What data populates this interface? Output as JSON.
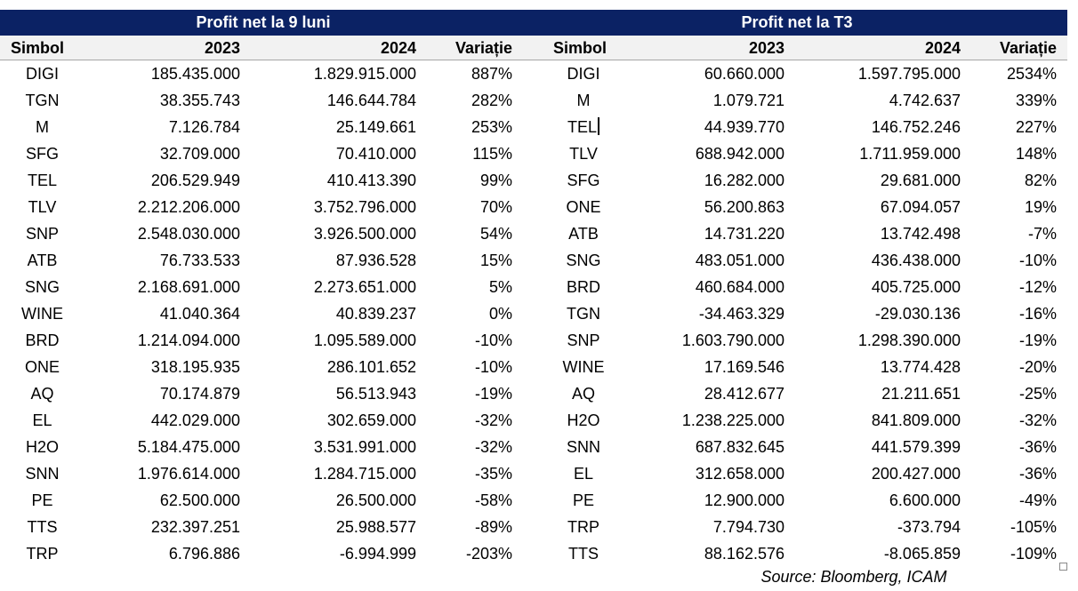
{
  "page": {
    "background": "#ffffff",
    "accent_navy": "#0b2264",
    "header_row_bg": "#f2f2f2",
    "header_underline": "#a6a6a6",
    "source_note": "Source: Bloomberg, ICAM"
  },
  "chart_data": [
    {
      "type": "table",
      "title": "Profit net la 9 luni",
      "columns": [
        "Simbol",
        "2023",
        "2024",
        "Variație"
      ],
      "rows": [
        [
          "DIGI",
          "185.435.000",
          "1.829.915.000",
          "887%"
        ],
        [
          "TGN",
          "38.355.743",
          "146.644.784",
          "282%"
        ],
        [
          "M",
          "7.126.784",
          "25.149.661",
          "253%"
        ],
        [
          "SFG",
          "32.709.000",
          "70.410.000",
          "115%"
        ],
        [
          "TEL",
          "206.529.949",
          "410.413.390",
          "99%"
        ],
        [
          "TLV",
          "2.212.206.000",
          "3.752.796.000",
          "70%"
        ],
        [
          "SNP",
          "2.548.030.000",
          "3.926.500.000",
          "54%"
        ],
        [
          "ATB",
          "76.733.533",
          "87.936.528",
          "15%"
        ],
        [
          "SNG",
          "2.168.691.000",
          "2.273.651.000",
          "5%"
        ],
        [
          "WINE",
          "41.040.364",
          "40.839.237",
          "0%"
        ],
        [
          "BRD",
          "1.214.094.000",
          "1.095.589.000",
          "-10%"
        ],
        [
          "ONE",
          "318.195.935",
          "286.101.652",
          "-10%"
        ],
        [
          "AQ",
          "70.174.879",
          "56.513.943",
          "-19%"
        ],
        [
          "EL",
          "442.029.000",
          "302.659.000",
          "-32%"
        ],
        [
          "H2O",
          "5.184.475.000",
          "3.531.991.000",
          "-32%"
        ],
        [
          "SNN",
          "1.976.614.000",
          "1.284.715.000",
          "-35%"
        ],
        [
          "PE",
          "62.500.000",
          "26.500.000",
          "-58%"
        ],
        [
          "TTS",
          "232.397.251",
          "25.988.577",
          "-89%"
        ],
        [
          "TRP",
          "6.796.886",
          "-6.994.999",
          "-203%"
        ]
      ]
    },
    {
      "type": "table",
      "title": "Profit net la T3",
      "columns": [
        "Simbol",
        "2023",
        "2024",
        "Variație"
      ],
      "cursor_cell": {
        "row": 2,
        "col": 0
      },
      "rows": [
        [
          "DIGI",
          "60.660.000",
          "1.597.795.000",
          "2534%"
        ],
        [
          "M",
          "1.079.721",
          "4.742.637",
          "339%"
        ],
        [
          "TEL",
          "44.939.770",
          "146.752.246",
          "227%"
        ],
        [
          "TLV",
          "688.942.000",
          "1.711.959.000",
          "148%"
        ],
        [
          "SFG",
          "16.282.000",
          "29.681.000",
          "82%"
        ],
        [
          "ONE",
          "56.200.863",
          "67.094.057",
          "19%"
        ],
        [
          "ATB",
          "14.731.220",
          "13.742.498",
          "-7%"
        ],
        [
          "SNG",
          "483.051.000",
          "436.438.000",
          "-10%"
        ],
        [
          "BRD",
          "460.684.000",
          "405.725.000",
          "-12%"
        ],
        [
          "TGN",
          "-34.463.329",
          "-29.030.136",
          "-16%"
        ],
        [
          "SNP",
          "1.603.790.000",
          "1.298.390.000",
          "-19%"
        ],
        [
          "WINE",
          "17.169.546",
          "13.774.428",
          "-20%"
        ],
        [
          "AQ",
          "28.412.677",
          "21.211.651",
          "-25%"
        ],
        [
          "H2O",
          "1.238.225.000",
          "841.809.000",
          "-32%"
        ],
        [
          "SNN",
          "687.832.645",
          "441.579.399",
          "-36%"
        ],
        [
          "EL",
          "312.658.000",
          "200.427.000",
          "-36%"
        ],
        [
          "PE",
          "12.900.000",
          "6.600.000",
          "-49%"
        ],
        [
          "TRP",
          "7.794.730",
          "-373.794",
          "-105%"
        ],
        [
          "TTS",
          "88.162.576",
          "-8.065.859",
          "-109%"
        ]
      ]
    }
  ]
}
